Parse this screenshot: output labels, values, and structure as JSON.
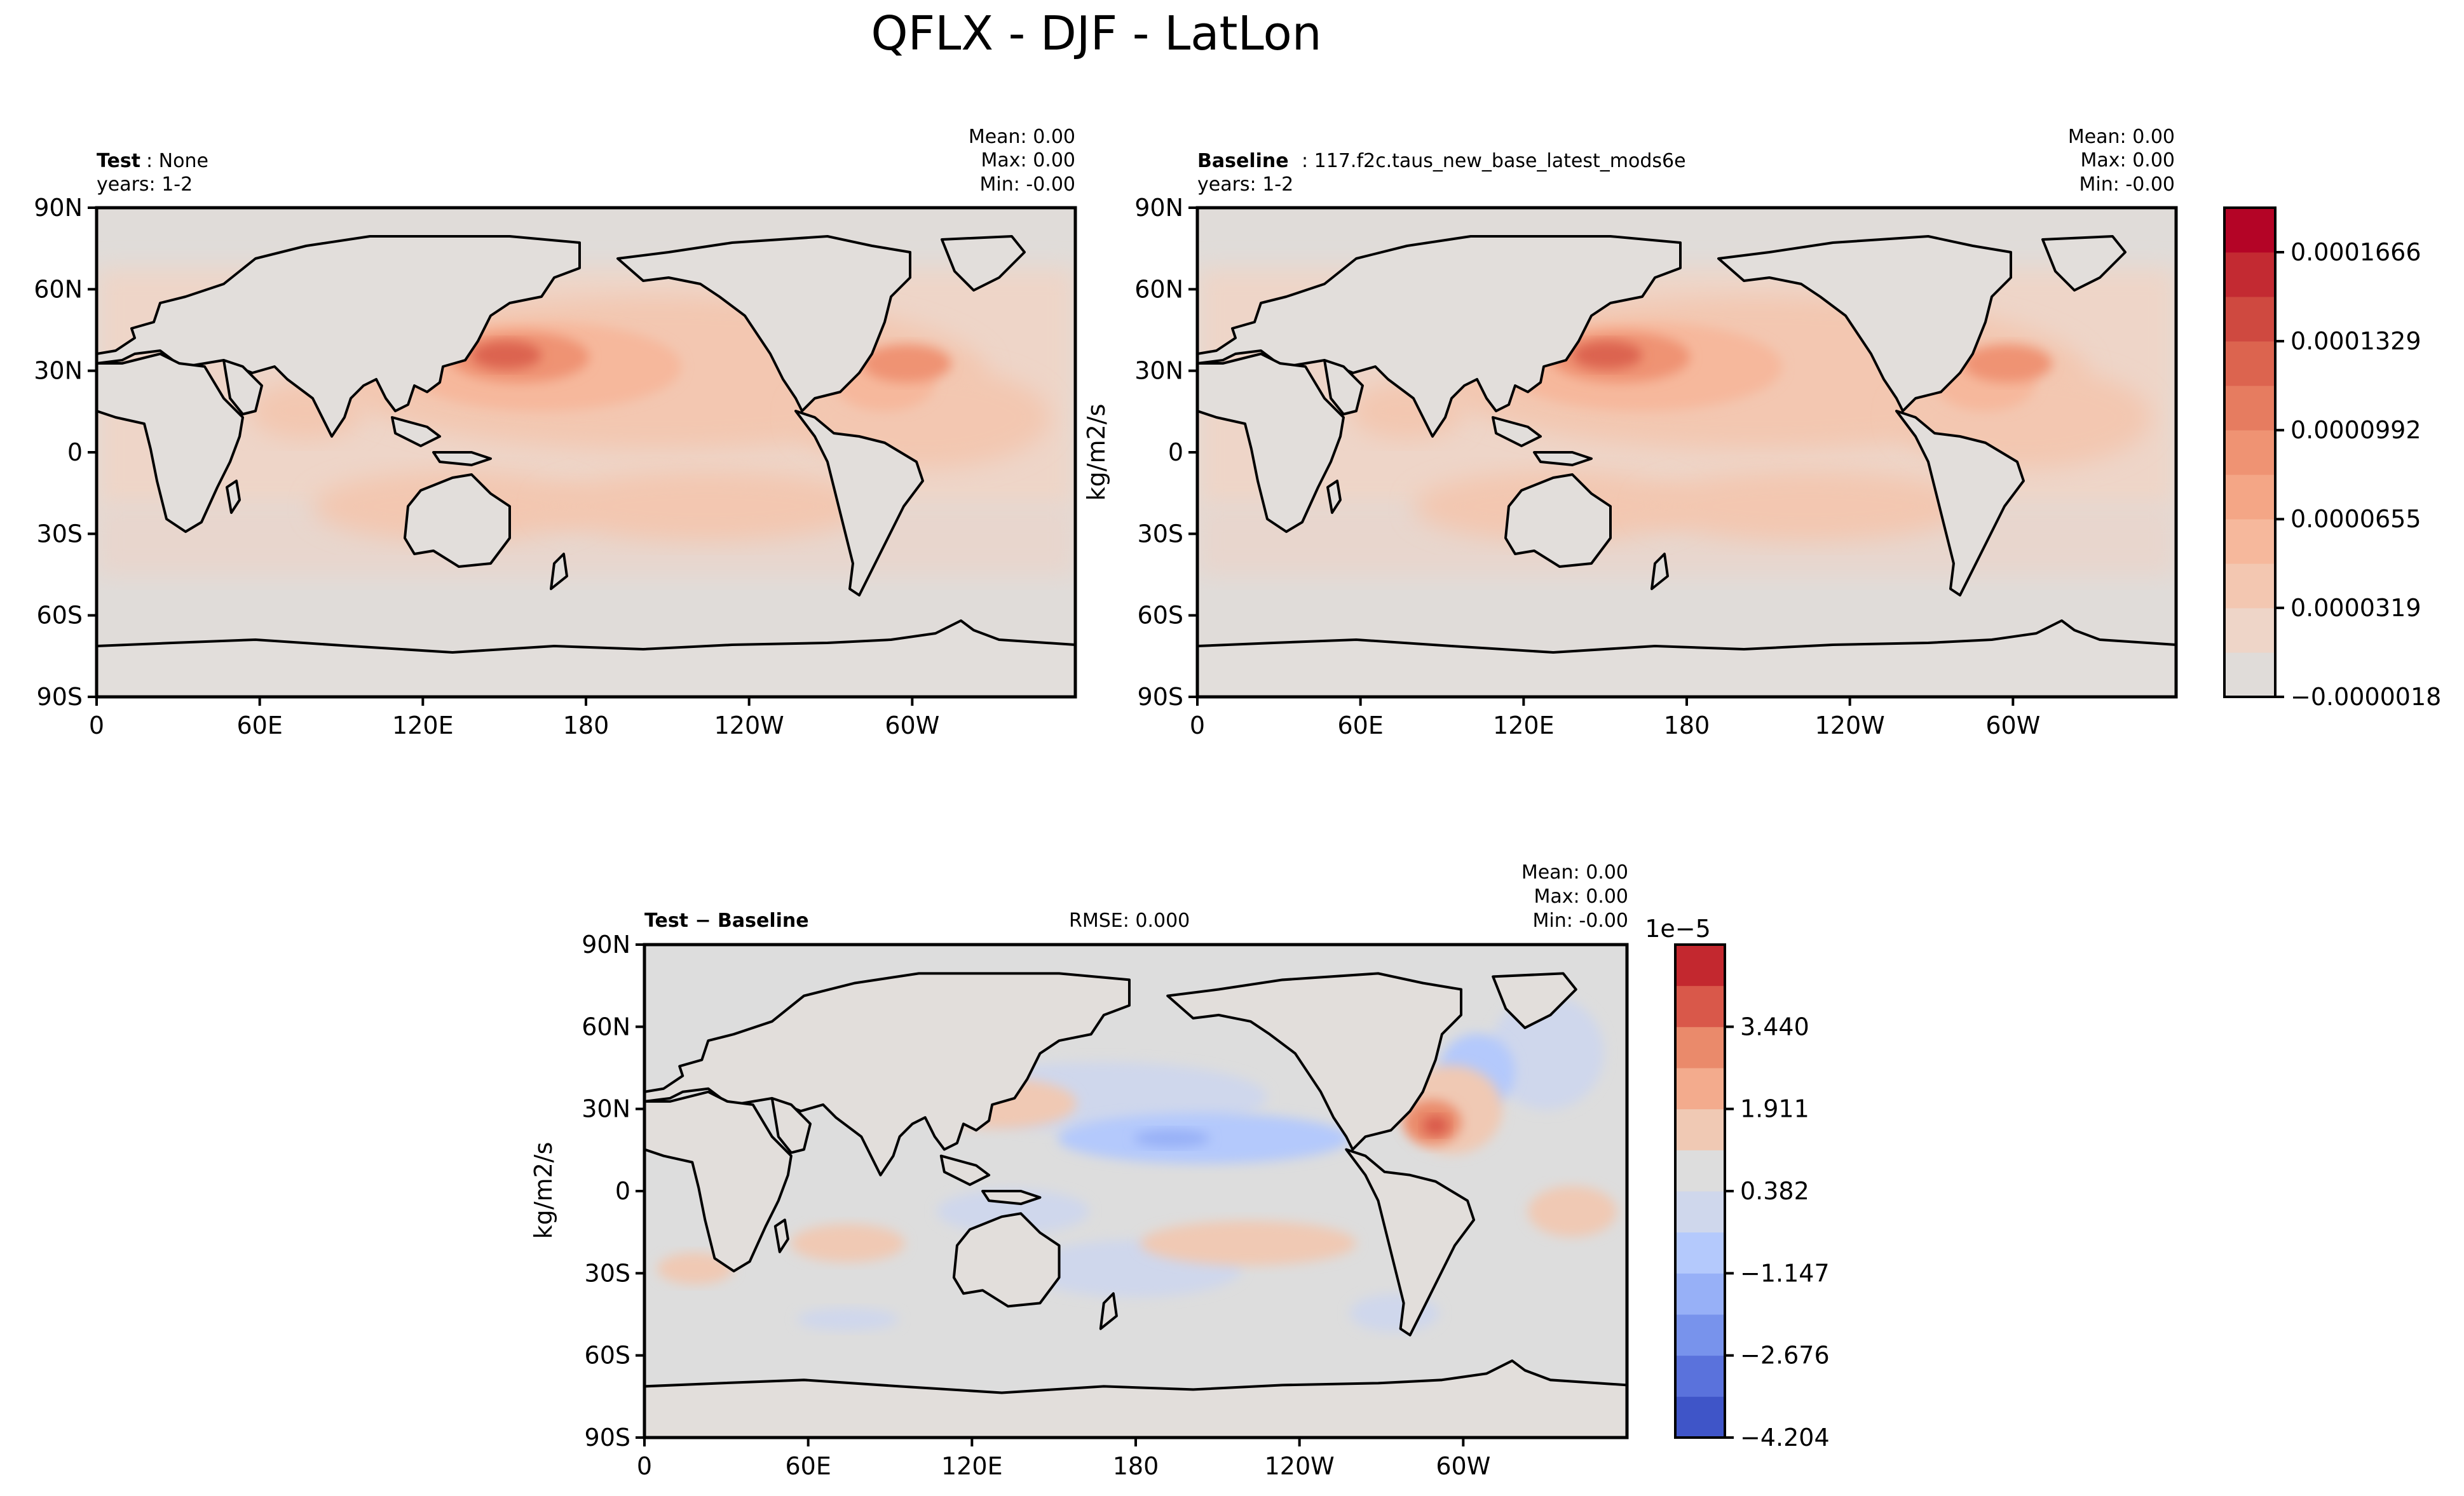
{
  "figure_title": "QFLX - DJF - LatLon",
  "colors": {
    "test_levels": [
      "#e0dcd9",
      "#eed5c8",
      "#f3c7b1",
      "#f6b89c",
      "#f4a686",
      "#ef9373",
      "#e67c60",
      "#dc644f",
      "#cf4940",
      "#c32a32",
      "#b40426"
    ],
    "diff_levels": [
      "#3f55c8",
      "#5a72dc",
      "#7893ec",
      "#97b0f7",
      "#b4c9fc",
      "#cfd7ec",
      "#dddddd",
      "#f0c9b4",
      "#f3ab8d",
      "#ea8a6b",
      "#d9584a",
      "#c3282f"
    ],
    "land": "#e2dedb",
    "coast": "#000000"
  },
  "panels": {
    "test": {
      "name_bold": "Test",
      "name_rest": ": None",
      "years": "years: 1-2",
      "mean": "Mean:  0.00",
      "max": "Max:  0.00",
      "min": "Min: -0.00"
    },
    "baseline": {
      "name_bold": "Baseline",
      "name_rest": ": 117.f2c.taus_new_base_latest_mods6e",
      "years": "years: 1-2",
      "mean": "Mean:  0.00",
      "max": "Max:  0.00",
      "min": "Min: -0.00",
      "ylabel": "kg/m2/s"
    },
    "diff": {
      "name_bold": "Test − Baseline",
      "rmse": "RMSE: 0.000",
      "mean": "Mean:  0.00",
      "max": "Max:  0.00",
      "min": "Min: -0.00",
      "ylabel": "kg/m2/s"
    }
  },
  "chart_data": [
    {
      "type": "heatmap",
      "panel": "Test",
      "xticks": [
        "0",
        "60E",
        "120E",
        "180",
        "120W",
        "60W"
      ],
      "xtick_values": [
        0,
        60,
        120,
        180,
        240,
        300
      ],
      "yticks": [
        "90N",
        "60N",
        "30N",
        "0",
        "30S",
        "60S",
        "90S"
      ],
      "ytick_values": [
        90,
        60,
        30,
        0,
        -30,
        -60,
        -90
      ],
      "xlim": [
        0,
        360
      ],
      "ylim": [
        -90,
        90
      ],
      "field_max_location": [
        150,
        35
      ]
    },
    {
      "type": "heatmap",
      "panel": "Baseline",
      "xticks": [
        "0",
        "60E",
        "120E",
        "180",
        "120W",
        "60W"
      ],
      "xtick_values": [
        0,
        60,
        120,
        180,
        240,
        300
      ],
      "yticks": [
        "90N",
        "60N",
        "30N",
        "0",
        "30S",
        "60S",
        "90S"
      ],
      "ytick_values": [
        90,
        60,
        30,
        0,
        -30,
        -60,
        -90
      ],
      "xlim": [
        0,
        360
      ],
      "ylim": [
        -90,
        90
      ],
      "ylabel": "kg/m2/s",
      "colorbar": {
        "labels": [
          "0.0001666",
          "0.0001329",
          "0.0000992",
          "0.0000655",
          "0.0000319",
          "−0.0000018"
        ],
        "values": [
          0.0001666,
          0.0001329,
          9.92e-05,
          6.55e-05,
          3.19e-05,
          -1.8e-06
        ],
        "n_levels": 11
      }
    },
    {
      "type": "heatmap",
      "panel": "Test − Baseline",
      "xticks": [
        "0",
        "60E",
        "120E",
        "180",
        "120W",
        "60W"
      ],
      "xtick_values": [
        0,
        60,
        120,
        180,
        240,
        300
      ],
      "yticks": [
        "90N",
        "60N",
        "30N",
        "0",
        "30S",
        "60S",
        "90S"
      ],
      "ytick_values": [
        90,
        60,
        30,
        0,
        -30,
        -60,
        -90
      ],
      "xlim": [
        0,
        360
      ],
      "ylim": [
        -90,
        90
      ],
      "ylabel": "kg/m2/s",
      "colorbar": {
        "offset_label": "1e−5",
        "labels": [
          "3.440",
          "1.911",
          "0.382",
          "−1.147",
          "−2.676",
          "−4.204"
        ],
        "values": [
          3.44,
          1.911,
          0.382,
          -1.147,
          -2.676,
          -4.204
        ],
        "n_levels": 12
      }
    }
  ]
}
